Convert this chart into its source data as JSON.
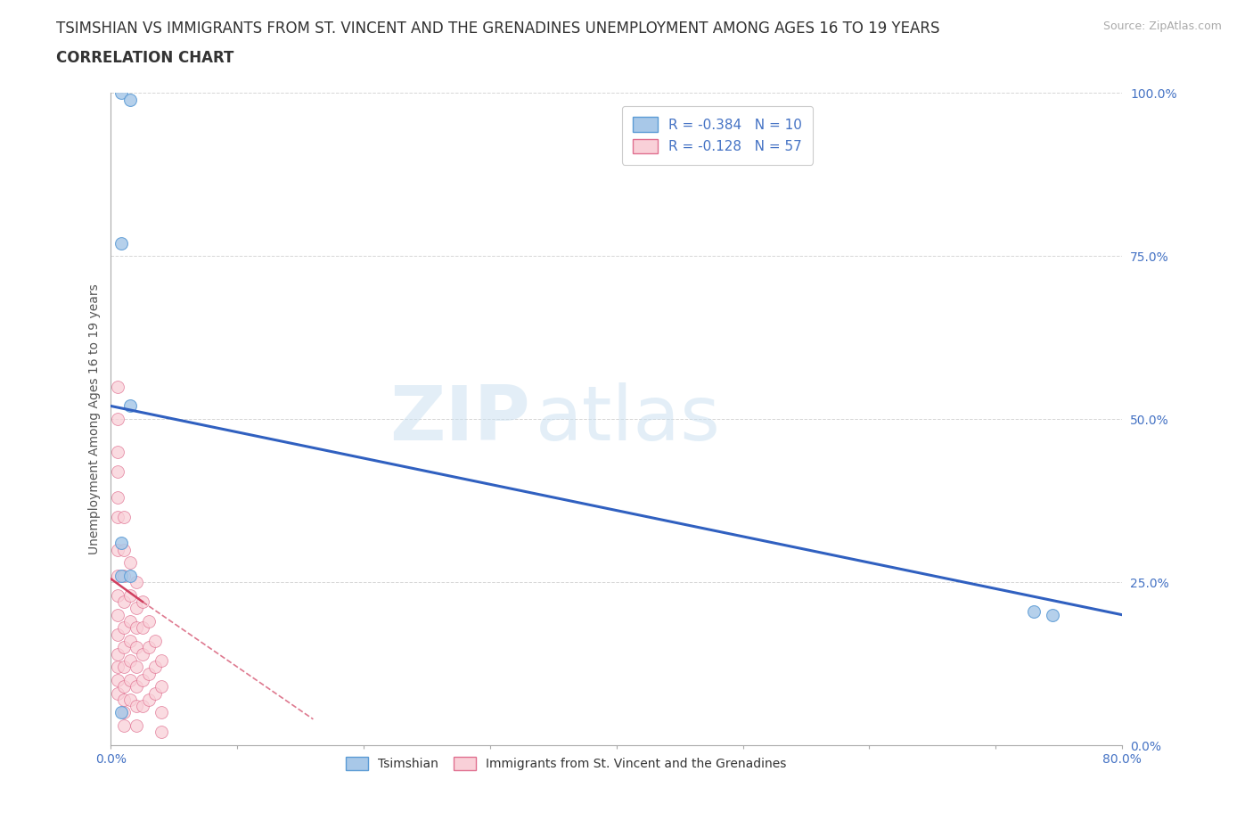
{
  "title_line1": "TSIMSHIAN VS IMMIGRANTS FROM ST. VINCENT AND THE GRENADINES UNEMPLOYMENT AMONG AGES 16 TO 19 YEARS",
  "title_line2": "CORRELATION CHART",
  "source_text": "Source: ZipAtlas.com",
  "ylabel": "Unemployment Among Ages 16 to 19 years",
  "xlim": [
    0.0,
    0.8
  ],
  "ylim": [
    0.0,
    1.0
  ],
  "xticks": [
    0.0,
    0.1,
    0.2,
    0.3,
    0.4,
    0.5,
    0.6,
    0.7,
    0.8
  ],
  "yticks": [
    0.0,
    0.25,
    0.5,
    0.75,
    1.0
  ],
  "background_color": "#ffffff",
  "watermark_part1": "ZIP",
  "watermark_part2": "atlas",
  "legend_text1": "R = -0.384   N = 10",
  "legend_text2": "R = -0.128   N = 57",
  "tsimshian_color": "#a8c8e8",
  "tsimshian_edge": "#5b9bd5",
  "svg_color": "#f9d0d8",
  "svg_edge": "#e07090",
  "regression_blue": "#3060c0",
  "regression_pink": "#d04060",
  "tsimshian_x": [
    0.008,
    0.015,
    0.008,
    0.015,
    0.008,
    0.008,
    0.015,
    0.73,
    0.745,
    0.008
  ],
  "tsimshian_y": [
    1.0,
    0.99,
    0.77,
    0.52,
    0.31,
    0.26,
    0.26,
    0.205,
    0.2,
    0.05
  ],
  "svincent_x": [
    0.005,
    0.005,
    0.005,
    0.005,
    0.005,
    0.005,
    0.005,
    0.005,
    0.005,
    0.005,
    0.005,
    0.005,
    0.005,
    0.005,
    0.005,
    0.01,
    0.01,
    0.01,
    0.01,
    0.01,
    0.01,
    0.01,
    0.01,
    0.01,
    0.01,
    0.01,
    0.015,
    0.015,
    0.015,
    0.015,
    0.015,
    0.015,
    0.015,
    0.02,
    0.02,
    0.02,
    0.02,
    0.02,
    0.02,
    0.02,
    0.02,
    0.025,
    0.025,
    0.025,
    0.025,
    0.025,
    0.03,
    0.03,
    0.03,
    0.03,
    0.035,
    0.035,
    0.035,
    0.04,
    0.04,
    0.04,
    0.04
  ],
  "svincent_y": [
    0.55,
    0.5,
    0.45,
    0.42,
    0.38,
    0.35,
    0.3,
    0.26,
    0.23,
    0.2,
    0.17,
    0.14,
    0.12,
    0.1,
    0.08,
    0.35,
    0.3,
    0.26,
    0.22,
    0.18,
    0.15,
    0.12,
    0.09,
    0.07,
    0.05,
    0.03,
    0.28,
    0.23,
    0.19,
    0.16,
    0.13,
    0.1,
    0.07,
    0.25,
    0.21,
    0.18,
    0.15,
    0.12,
    0.09,
    0.06,
    0.03,
    0.22,
    0.18,
    0.14,
    0.1,
    0.06,
    0.19,
    0.15,
    0.11,
    0.07,
    0.16,
    0.12,
    0.08,
    0.13,
    0.09,
    0.05,
    0.02
  ],
  "blue_reg": [
    0.0,
    0.52,
    0.8,
    0.2
  ],
  "pink_reg_solid": [
    0.0,
    0.255,
    0.025,
    0.22
  ],
  "pink_reg_dashed": [
    0.025,
    0.22,
    0.16,
    0.04
  ],
  "marker_size": 100,
  "title_fontsize": 12,
  "axis_label_fontsize": 10,
  "tick_fontsize": 10,
  "legend_fontsize": 11,
  "tick_color": "#4472c4",
  "title_color": "#333333",
  "ylabel_color": "#555555"
}
